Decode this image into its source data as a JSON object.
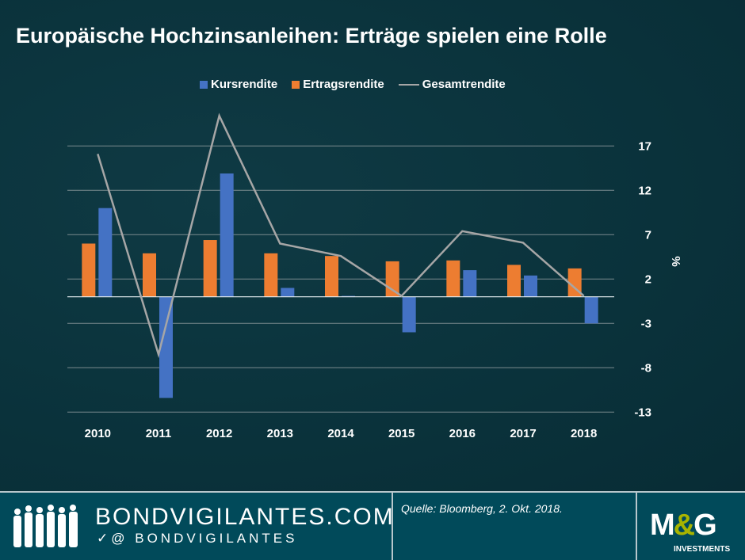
{
  "title": "Europäische Hochzinsanleihen: Erträge spielen eine Rolle",
  "chart_data": {
    "type": "bar",
    "categories": [
      "2010",
      "2011",
      "2012",
      "2013",
      "2014",
      "2015",
      "2016",
      "2017",
      "2018"
    ],
    "series": [
      {
        "name": "Kursrendite",
        "kind": "bar",
        "color": "#4472c4",
        "values": [
          10.0,
          -11.4,
          13.9,
          1.0,
          0.1,
          -4.0,
          3.0,
          2.4,
          -3.0
        ]
      },
      {
        "name": "Ertragsrendite",
        "kind": "bar",
        "color": "#ed7d31",
        "values": [
          6.0,
          4.9,
          6.4,
          4.9,
          4.6,
          4.0,
          4.1,
          3.6,
          3.2
        ]
      },
      {
        "name": "Gesamtrendite",
        "kind": "line",
        "color": "#a6a6a6",
        "values": [
          16.1,
          -6.5,
          20.4,
          6.0,
          4.6,
          0.1,
          7.4,
          6.1,
          0.1
        ]
      }
    ],
    "yticks": [
      17,
      12,
      7,
      2,
      -3,
      -8,
      -13
    ],
    "ylim": [
      -13,
      22
    ],
    "ylabel": "%",
    "ylabel_position": "right",
    "legend": "top",
    "grid": true
  },
  "footer": {
    "site": "BONDVIGILANTES.COM",
    "handle": "@ BONDVIGILANTES",
    "source": "Quelle: Bloomberg, 2. Okt. 2018.",
    "logo": "M&G",
    "logo_sub": "INVESTMENTS"
  }
}
